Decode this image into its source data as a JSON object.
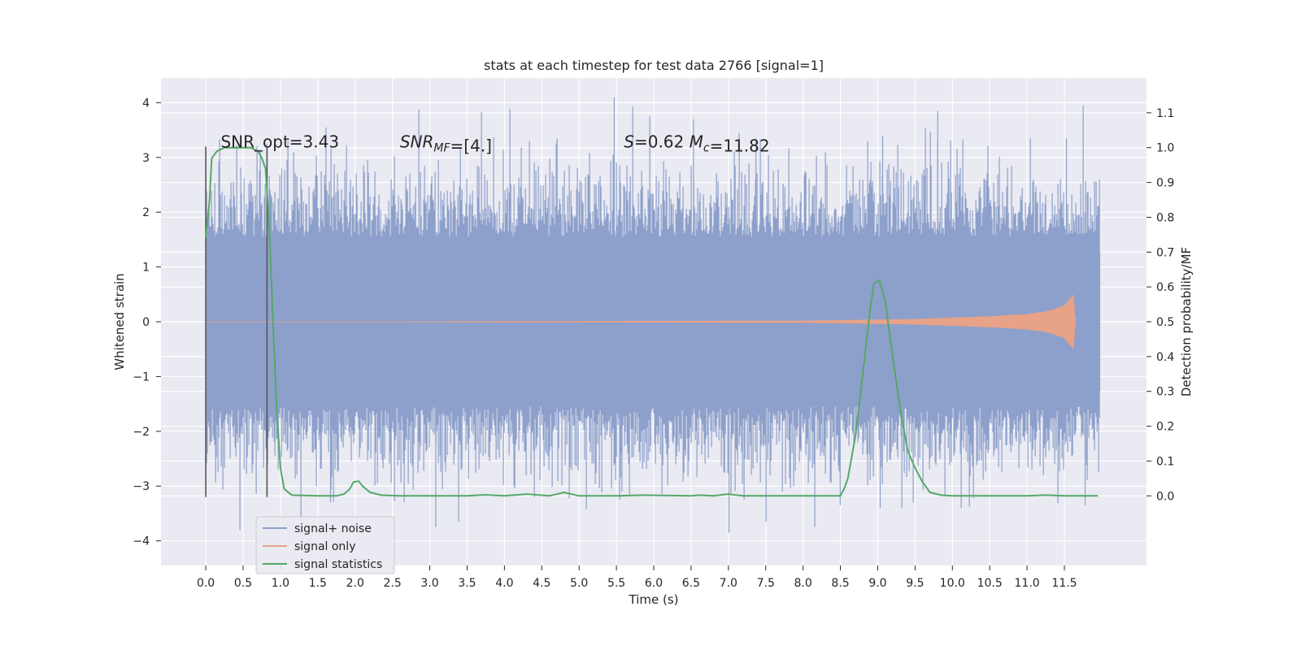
{
  "chart_data": {
    "type": "line",
    "title": "stats at each timestep for test data 2766 [signal=1]",
    "xlabel": "Time (s)",
    "ylabel_left": "Whitened strain",
    "ylabel_right": "Detection probability/MF",
    "xlim": [
      -0.6,
      12.6
    ],
    "ylim_left": [
      -4.45,
      4.45
    ],
    "ylim_right": [
      -0.2,
      1.2
    ],
    "x_ticks": [
      0.0,
      0.5,
      1.0,
      1.5,
      2.0,
      2.5,
      3.0,
      3.5,
      4.0,
      4.5,
      5.0,
      5.5,
      6.0,
      6.5,
      7.0,
      7.5,
      8.0,
      8.5,
      9.0,
      9.5,
      10.0,
      10.5,
      11.0,
      11.5
    ],
    "x_tick_labels": [
      "0.0",
      "0.5",
      "1.0",
      "1.5",
      "2.0",
      "2.5",
      "3.0",
      "3.5",
      "4.0",
      "4.5",
      "5.0",
      "5.5",
      "6.0",
      "6.5",
      "7.0",
      "7.5",
      "8.0",
      "8.5",
      "9.0",
      "9.5",
      "10.0",
      "10.5",
      "11.0",
      "11.5"
    ],
    "y_left_ticks": [
      -4,
      -3,
      -2,
      -1,
      0,
      1,
      2,
      3,
      4
    ],
    "y_left_tick_labels": [
      "−4",
      "−3",
      "−2",
      "−1",
      "0",
      "1",
      "2",
      "3",
      "4"
    ],
    "y_right_ticks": [
      0.0,
      0.1,
      0.2,
      0.3,
      0.4,
      0.5,
      0.6,
      0.7,
      0.8,
      0.9,
      1.0,
      1.1
    ],
    "y_right_tick_labels": [
      "0.0",
      "0.1",
      "0.2",
      "0.3",
      "0.4",
      "0.5",
      "0.6",
      "0.7",
      "0.8",
      "0.9",
      "1.0",
      "1.1"
    ],
    "grid": true,
    "legend_position": "lower-left",
    "annotations": [
      {
        "text": "SNR_opt=3.43",
        "x": 0.2,
        "y_right": 1.0
      },
      {
        "text_parts": [
          [
            "SNR",
            "italic"
          ],
          [
            "MF",
            "sub-italic"
          ],
          [
            "=[4.]",
            "normal"
          ]
        ],
        "x": 2.6,
        "y_right": 1.0
      },
      {
        "text_parts": [
          [
            "S",
            "italic"
          ],
          [
            "=0.62   ",
            "normal"
          ],
          [
            "M",
            "italic"
          ],
          [
            "c",
            "sub-italic"
          ],
          [
            "=11.82",
            "normal"
          ]
        ],
        "x": 5.6,
        "y_right": 1.0
      }
    ],
    "window_markers": [
      {
        "x": 0.0,
        "y_range": [
          -3.2,
          3.2
        ]
      },
      {
        "x": 0.82,
        "y_range": [
          -3.2,
          3.2
        ]
      }
    ],
    "series": [
      {
        "name": "signal+ noise",
        "axis": "left",
        "color": "#8da0cb",
        "kind": "noise",
        "x_range": [
          0.0,
          11.98
        ],
        "typical_amplitude": 1.3,
        "peaks": [
          {
            "x": 0.5,
            "y": 2.35
          },
          {
            "x": 1.0,
            "y": 2.8
          },
          {
            "x": 1.6,
            "y": 3.55
          },
          {
            "x": 1.65,
            "y": -3.3
          },
          {
            "x": 3.05,
            "y": -3.75
          },
          {
            "x": 3.4,
            "y": -3.65
          },
          {
            "x": 5.5,
            "y": 4.1
          },
          {
            "x": 5.55,
            "y": -3.1
          },
          {
            "x": 6.5,
            "y": 3.7
          },
          {
            "x": 7.0,
            "y": -3.85
          },
          {
            "x": 7.35,
            "y": 3.35
          },
          {
            "x": 8.5,
            "y": -3.35
          },
          {
            "x": 9.05,
            "y": 3.4
          },
          {
            "x": 9.05,
            "y": -3.4
          },
          {
            "x": 9.8,
            "y": 3.85
          },
          {
            "x": 11.5,
            "y": 3.35
          },
          {
            "x": 11.75,
            "y": 3.95
          },
          {
            "x": 11.75,
            "y": -3.35
          }
        ]
      },
      {
        "name": "signal only",
        "axis": "left",
        "color": "#e8a287",
        "kind": "chirp",
        "x_range": [
          0.0,
          11.65
        ],
        "envelope": [
          {
            "x": 0.0,
            "y": 0.0
          },
          {
            "x": 8.0,
            "y": 0.02
          },
          {
            "x": 9.5,
            "y": 0.05
          },
          {
            "x": 10.5,
            "y": 0.1
          },
          {
            "x": 11.0,
            "y": 0.14
          },
          {
            "x": 11.3,
            "y": 0.2
          },
          {
            "x": 11.5,
            "y": 0.3
          },
          {
            "x": 11.62,
            "y": 0.5
          },
          {
            "x": 11.65,
            "y": 0.0
          }
        ]
      },
      {
        "name": "signal statistics",
        "axis": "right",
        "color": "#55a868",
        "kind": "line",
        "points": [
          [
            0.0,
            0.74
          ],
          [
            0.05,
            0.85
          ],
          [
            0.08,
            0.97
          ],
          [
            0.15,
            0.99
          ],
          [
            0.25,
            1.0
          ],
          [
            0.4,
            1.0
          ],
          [
            0.6,
            1.0
          ],
          [
            0.7,
            0.99
          ],
          [
            0.75,
            0.97
          ],
          [
            0.8,
            0.94
          ],
          [
            0.85,
            0.78
          ],
          [
            0.9,
            0.5
          ],
          [
            0.95,
            0.25
          ],
          [
            1.0,
            0.08
          ],
          [
            1.05,
            0.02
          ],
          [
            1.15,
            0.002
          ],
          [
            1.5,
            0.0
          ],
          [
            1.75,
            0.0
          ],
          [
            1.85,
            0.005
          ],
          [
            1.93,
            0.02
          ],
          [
            1.98,
            0.04
          ],
          [
            2.05,
            0.042
          ],
          [
            2.1,
            0.028
          ],
          [
            2.2,
            0.01
          ],
          [
            2.35,
            0.002
          ],
          [
            2.6,
            0.0
          ],
          [
            3.5,
            0.0
          ],
          [
            3.75,
            0.003
          ],
          [
            4.0,
            0.0
          ],
          [
            4.3,
            0.005
          ],
          [
            4.6,
            0.0
          ],
          [
            4.8,
            0.01
          ],
          [
            5.0,
            0.0
          ],
          [
            5.5,
            0.0
          ],
          [
            5.85,
            0.002
          ],
          [
            6.5,
            0.0
          ],
          [
            6.6,
            0.002
          ],
          [
            6.8,
            0.0
          ],
          [
            7.0,
            0.005
          ],
          [
            7.2,
            0.0
          ],
          [
            8.5,
            0.0
          ],
          [
            8.55,
            0.02
          ],
          [
            8.6,
            0.05
          ],
          [
            8.7,
            0.17
          ],
          [
            8.8,
            0.35
          ],
          [
            8.9,
            0.54
          ],
          [
            8.95,
            0.61
          ],
          [
            9.02,
            0.62
          ],
          [
            9.1,
            0.56
          ],
          [
            9.2,
            0.4
          ],
          [
            9.3,
            0.25
          ],
          [
            9.4,
            0.13
          ],
          [
            9.5,
            0.08
          ],
          [
            9.6,
            0.04
          ],
          [
            9.7,
            0.01
          ],
          [
            9.85,
            0.002
          ],
          [
            10.0,
            0.0
          ],
          [
            11.0,
            0.0
          ],
          [
            11.25,
            0.002
          ],
          [
            11.5,
            0.0
          ],
          [
            11.95,
            0.0
          ]
        ]
      }
    ]
  }
}
